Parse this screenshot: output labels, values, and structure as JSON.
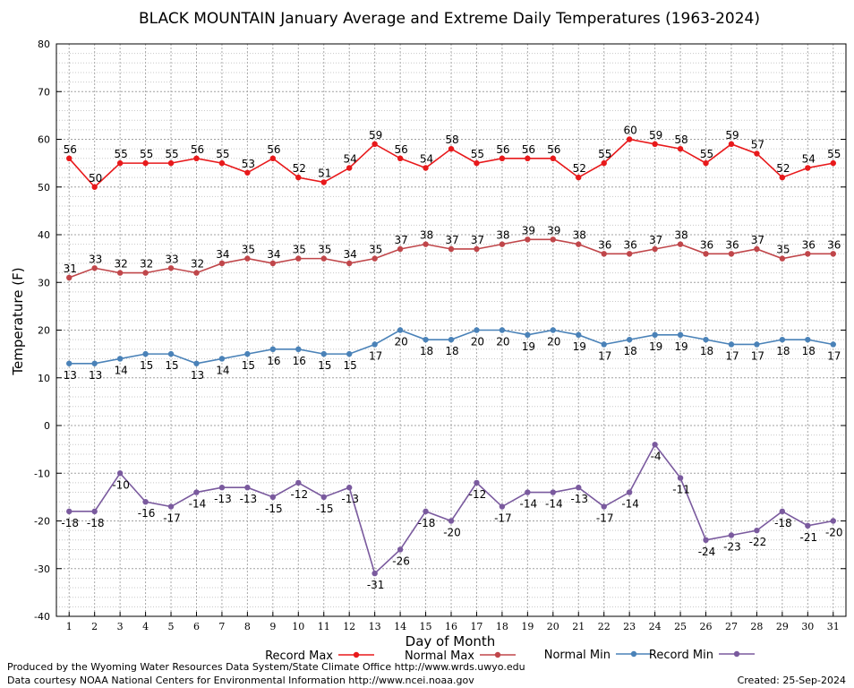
{
  "chart_data": {
    "type": "line",
    "title": "BLACK MOUNTAIN January Average and Extreme Daily Temperatures (1963-2024)",
    "xlabel": "Day of Month",
    "ylabel": "Temperature (F)",
    "ylim": [
      -40,
      80
    ],
    "xlim": [
      0.5,
      31.5
    ],
    "x": [
      1,
      2,
      3,
      4,
      5,
      6,
      7,
      8,
      9,
      10,
      11,
      12,
      13,
      14,
      15,
      16,
      17,
      18,
      19,
      20,
      21,
      22,
      23,
      24,
      25,
      26,
      27,
      28,
      29,
      30,
      31
    ],
    "y_ticks": [
      "-40",
      "-30",
      "-20",
      "-10",
      "0",
      "10",
      "20",
      "30",
      "40",
      "50",
      "60",
      "70",
      "80"
    ],
    "x_ticks": [
      "1",
      "2",
      "3",
      "4",
      "5",
      "6",
      "7",
      "8",
      "9",
      "10",
      "11",
      "12",
      "13",
      "14",
      "15",
      "16",
      "17",
      "18",
      "19",
      "20",
      "21",
      "22",
      "23",
      "24",
      "25",
      "26",
      "27",
      "28",
      "29",
      "30",
      "31"
    ],
    "grid": true,
    "legend_position": "bottom",
    "series": [
      {
        "name": "Record Max",
        "color": "#e8191b",
        "values": [
          56,
          50,
          55,
          55,
          55,
          56,
          55,
          53,
          56,
          52,
          51,
          54,
          59,
          56,
          54,
          58,
          55,
          56,
          56,
          56,
          52,
          55,
          60,
          59,
          58,
          55,
          59,
          57,
          52,
          54,
          55
        ]
      },
      {
        "name": "Normal Max",
        "color": "#c0464a",
        "values": [
          31,
          33,
          32,
          32,
          33,
          32,
          34,
          35,
          34,
          35,
          35,
          34,
          35,
          37,
          38,
          37,
          37,
          38,
          39,
          39,
          38,
          36,
          36,
          37,
          38,
          36,
          36,
          37,
          35,
          36,
          36
        ]
      },
      {
        "name": "Normal Min",
        "color": "#4a82b8",
        "values": [
          13,
          13,
          14,
          15,
          15,
          13,
          14,
          15,
          16,
          16,
          15,
          15,
          17,
          20,
          18,
          18,
          20,
          20,
          19,
          20,
          19,
          17,
          18,
          19,
          19,
          18,
          17,
          17,
          18,
          18,
          17
        ]
      },
      {
        "name": "Record Min",
        "color": "#7a5a9e",
        "values": [
          -18,
          -18,
          -10,
          -16,
          -17,
          -14,
          -13,
          -13,
          -15,
          -12,
          -15,
          -13,
          -31,
          -26,
          -18,
          -20,
          -12,
          -17,
          -14,
          -14,
          -13,
          -17,
          -14,
          -4,
          -11,
          -24,
          -23,
          -22,
          -18,
          -21,
          -20
        ]
      }
    ]
  },
  "footer": {
    "produced_by": "Produced by the Wyoming Water Resources Data System/State Climate Office http://www.wrds.uwyo.edu",
    "data_courtesy": "Data courtesy NOAA National Centers for Environmental Information http://www.ncei.noaa.gov",
    "created": "Created: 25-Sep-2024"
  }
}
